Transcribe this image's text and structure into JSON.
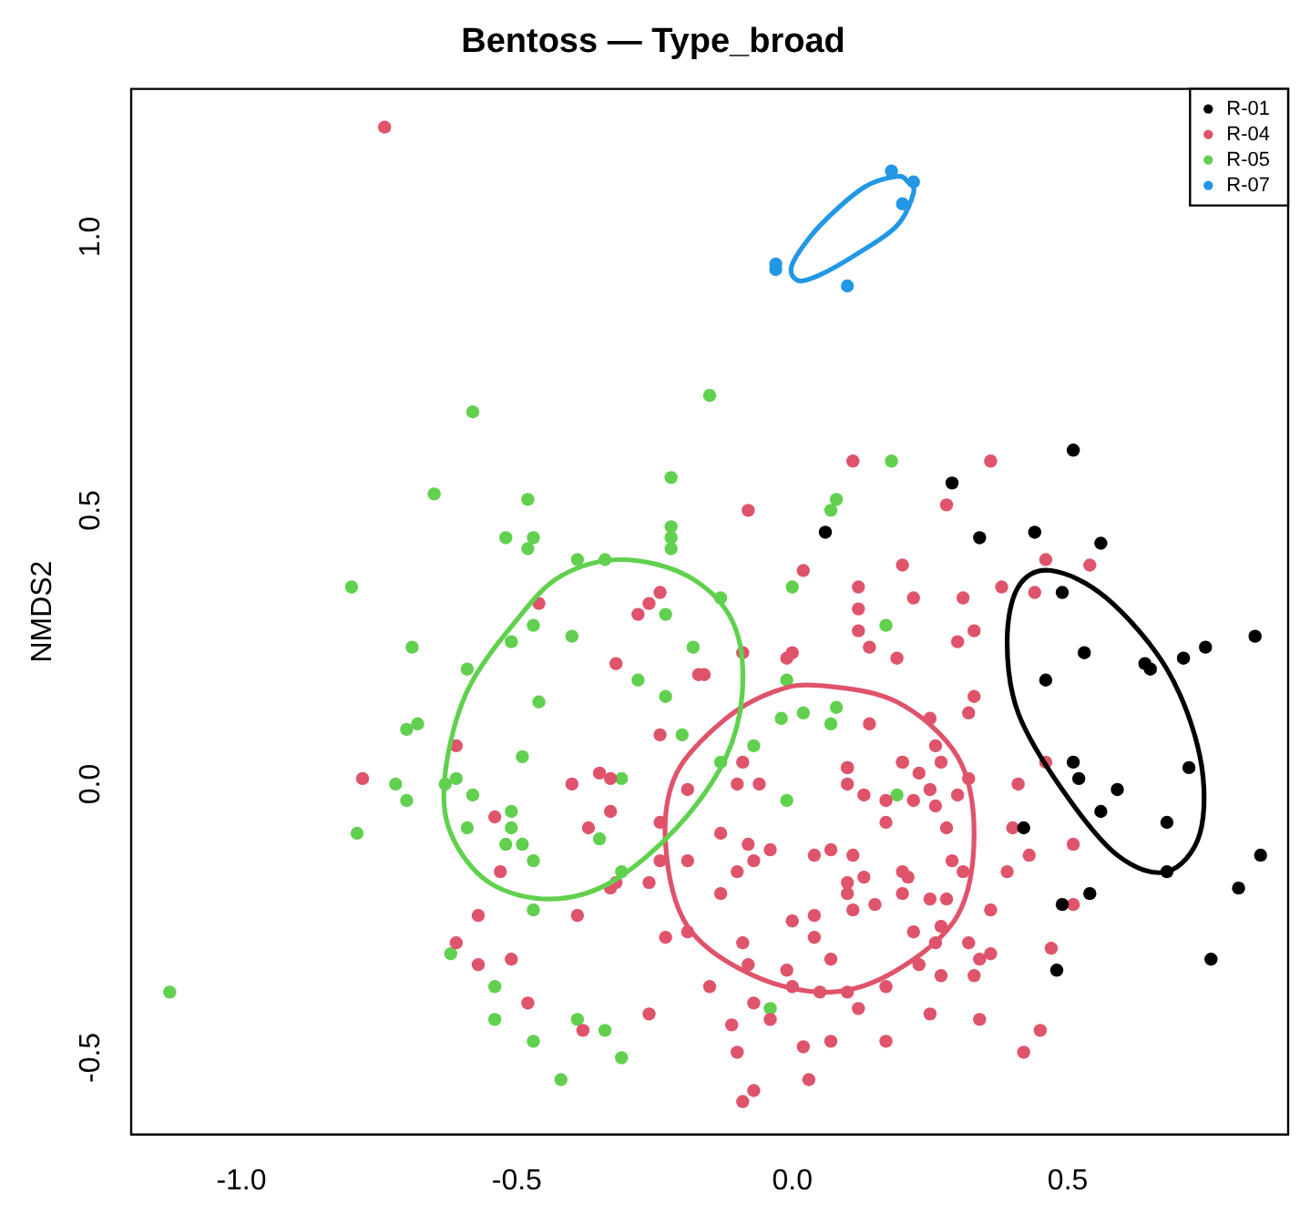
{
  "chart_data": {
    "type": "scatter",
    "title": "Bentoss — Type_broad",
    "ylabel": "NMDS2",
    "xlim": [
      -1.2,
      0.9
    ],
    "ylim": [
      -0.64,
      1.27
    ],
    "xticks": [
      {
        "value": -1,
        "label": "-1.0"
      },
      {
        "value": -0.5,
        "label": "-0.5"
      },
      {
        "value": 0,
        "label": "0.0"
      },
      {
        "value": 0.5,
        "label": "0.5"
      }
    ],
    "yticks": [
      {
        "value": -0.5,
        "label": "-0.5"
      },
      {
        "value": 0,
        "label": "0.0"
      },
      {
        "value": 0.5,
        "label": "0.5"
      },
      {
        "value": 1,
        "label": "1.0"
      }
    ],
    "legend": "top right",
    "marker": "circle",
    "series": [
      {
        "name": "R-01",
        "color": "#000000",
        "x": [
          0.51,
          0.29,
          0.06,
          0.34,
          0.44,
          0.56,
          0.49,
          0.53,
          0.46,
          0.64,
          0.65,
          0.71,
          0.75,
          0.84,
          0.51,
          0.72,
          0.52,
          0.59,
          0.56,
          0.68,
          0.42,
          0.68,
          0.85,
          0.81,
          0.54,
          0.49,
          0.76,
          0.48
        ],
        "values": [
          0.61,
          0.55,
          0.46,
          0.45,
          0.46,
          0.44,
          0.35,
          0.24,
          0.19,
          0.22,
          0.21,
          0.23,
          0.25,
          0.27,
          0.04,
          0.03,
          0.01,
          -0.01,
          -0.05,
          -0.07,
          -0.08,
          -0.16,
          -0.13,
          -0.19,
          -0.2,
          -0.22,
          -0.32,
          -0.34
        ]
      },
      {
        "name": "R-04",
        "color": "#df536b",
        "x": [
          -0.74,
          -0.46,
          -0.24,
          -0.26,
          -0.28,
          -0.32,
          -0.17,
          -0.24,
          -0.61,
          0.11,
          0.36,
          -0.08,
          0.28,
          0.02,
          0.2,
          0.12,
          0.12,
          0.22,
          0.31,
          0.38,
          0.44,
          0.46,
          0.54,
          0.12,
          0.14,
          0.19,
          0.3,
          0.33,
          0,
          -0.01,
          -0.09,
          -0.16,
          0.33,
          0.32,
          0.25,
          0.14,
          0.26,
          0.46,
          0.2,
          0.1,
          -0.78,
          -0.54,
          -0.53,
          -0.4,
          -0.35,
          -0.33,
          -0.37,
          -0.33,
          -0.32,
          -0.33,
          -0.26,
          -0.19,
          -0.24,
          -0.24,
          -0.19,
          -0.19,
          -0.23,
          -0.57,
          -0.61,
          -0.57,
          -0.51,
          -0.39,
          -0.48,
          -0.38,
          -0.26,
          -0.09,
          -0.1,
          -0.06,
          0.1,
          0.1,
          0.2,
          0.23,
          0.27,
          0.13,
          0.17,
          0.22,
          0.25,
          0.3,
          0.32,
          0.26,
          0.17,
          0.28,
          -0.13,
          -0.08,
          -0.04,
          -0.07,
          -0.1,
          -0.13,
          0.04,
          0.07,
          0.11,
          0.1,
          0.13,
          0.1,
          0.15,
          0.11,
          0.2,
          0.21,
          0.2,
          0.25,
          0.28,
          0.29,
          0.31,
          0.36,
          0.39,
          0.43,
          0.4,
          0.41,
          0.51,
          0,
          0.04,
          0.04,
          -0.09,
          0.07,
          -0.08,
          -0.01,
          0.22,
          0.27,
          0.26,
          0.32,
          0.34,
          0.36,
          0.23,
          0.27,
          0.33,
          0.47,
          -0.15,
          0,
          0.05,
          0.1,
          0.17,
          -0.07,
          -0.04,
          0.12,
          0.25,
          0.34,
          -0.11,
          0.07,
          0.17,
          0.45,
          0.42,
          -0.1,
          0.02,
          0.03,
          -0.07,
          -0.09,
          0.51
        ],
        "values": [
          1.2,
          0.33,
          0.35,
          0.33,
          0.31,
          0.22,
          0.2,
          0.09,
          0.07,
          0.59,
          0.59,
          0.5,
          0.51,
          0.39,
          0.4,
          0.36,
          0.32,
          0.34,
          0.34,
          0.36,
          0.35,
          0.41,
          0.4,
          0.28,
          0.25,
          0.23,
          0.26,
          0.28,
          0.24,
          0.23,
          0.24,
          0.2,
          0.16,
          0.13,
          0.12,
          0.11,
          0.07,
          0.04,
          0.04,
          0.03,
          0.01,
          -0.06,
          -0.16,
          0,
          0.02,
          0.01,
          -0.08,
          -0.05,
          -0.18,
          -0.19,
          -0.18,
          -0.01,
          -0.07,
          -0.14,
          -0.14,
          -0.27,
          -0.28,
          -0.24,
          -0.29,
          -0.33,
          -0.32,
          -0.24,
          -0.4,
          -0.45,
          -0.42,
          0.04,
          0,
          0,
          0.03,
          0,
          0.04,
          0.02,
          0.04,
          -0.02,
          -0.03,
          -0.03,
          -0.01,
          -0.02,
          0.01,
          -0.04,
          -0.07,
          -0.08,
          -0.09,
          -0.11,
          -0.12,
          -0.14,
          -0.16,
          -0.2,
          -0.13,
          -0.12,
          -0.13,
          -0.18,
          -0.17,
          -0.2,
          -0.22,
          -0.23,
          -0.16,
          -0.17,
          -0.2,
          -0.21,
          -0.21,
          -0.14,
          -0.16,
          -0.23,
          -0.16,
          -0.13,
          -0.08,
          0,
          -0.11,
          -0.25,
          -0.24,
          -0.28,
          -0.29,
          -0.32,
          -0.33,
          -0.34,
          -0.27,
          -0.26,
          -0.29,
          -0.29,
          -0.32,
          -0.31,
          -0.33,
          -0.35,
          -0.35,
          -0.3,
          -0.37,
          -0.37,
          -0.38,
          -0.38,
          -0.37,
          -0.4,
          -0.43,
          -0.41,
          -0.42,
          -0.43,
          -0.44,
          -0.47,
          -0.47,
          -0.45,
          -0.49,
          -0.49,
          -0.48,
          -0.54,
          -0.56,
          -0.58,
          -0.22
        ]
      },
      {
        "name": "R-05",
        "color": "#61d04f",
        "x": [
          -0.58,
          -0.15,
          -0.22,
          -0.65,
          -0.48,
          -0.22,
          -0.22,
          -0.22,
          -0.52,
          -0.47,
          -0.48,
          -0.39,
          -0.34,
          -0.8,
          -0.23,
          -0.47,
          -0.51,
          -0.4,
          -0.69,
          -0.18,
          -0.59,
          -0.28,
          -0.23,
          -0.46,
          -0.68,
          -0.7,
          -0.2,
          -0.49,
          0.18,
          0.08,
          0.07,
          0,
          0.17,
          -0.13,
          -0.01,
          0.02,
          -0.02,
          0.08,
          0.07,
          -0.07,
          -0.13,
          -0.72,
          -0.7,
          -0.79,
          -0.63,
          -0.61,
          -0.58,
          -0.51,
          -0.51,
          -0.59,
          -0.52,
          -0.49,
          -0.47,
          -0.35,
          -0.31,
          -0.31,
          -0.47,
          -0.62,
          -0.54,
          -0.54,
          -0.47,
          -0.42,
          -0.39,
          -0.34,
          -0.31,
          -1.13,
          -0.01,
          0.19,
          -0.04
        ],
        "values": [
          0.68,
          0.71,
          0.56,
          0.53,
          0.52,
          0.47,
          0.45,
          0.43,
          0.45,
          0.45,
          0.43,
          0.41,
          0.41,
          0.36,
          0.31,
          0.29,
          0.26,
          0.27,
          0.25,
          0.25,
          0.21,
          0.19,
          0.16,
          0.15,
          0.11,
          0.1,
          0.09,
          0.05,
          0.59,
          0.52,
          0.5,
          0.36,
          0.29,
          0.34,
          0.19,
          0.13,
          0.12,
          0.14,
          0.11,
          0.07,
          0.04,
          0,
          -0.03,
          -0.09,
          0,
          0.01,
          -0.02,
          -0.05,
          -0.08,
          -0.08,
          -0.11,
          -0.11,
          -0.14,
          -0.1,
          0.01,
          -0.16,
          -0.23,
          -0.31,
          -0.37,
          -0.43,
          -0.47,
          -0.54,
          -0.43,
          -0.45,
          -0.5,
          -0.38,
          -0.03,
          -0.02,
          -0.41
        ]
      },
      {
        "name": "R-07",
        "color": "#2297e6",
        "x": [
          0.18,
          0.22,
          0.2,
          -0.03,
          -0.03,
          0.1
        ],
        "values": [
          1.12,
          1.1,
          1.06,
          0.95,
          0.94,
          0.91
        ]
      }
    ]
  }
}
